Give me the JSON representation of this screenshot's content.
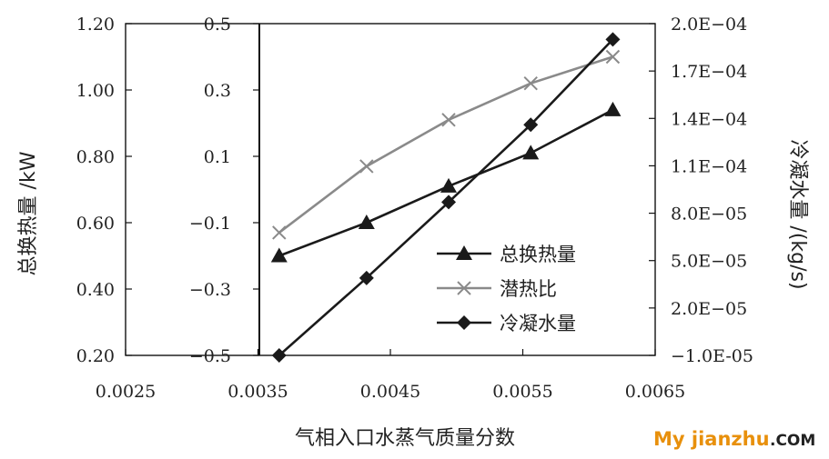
{
  "chart_data": {
    "type": "line",
    "title": "",
    "xlabel": "气相入口水蒸气质量分数",
    "ylabels": {
      "left_outer": "总换热量 /kW",
      "right": "冷凝水量 /(kg/s)"
    },
    "xlim": [
      0.0025,
      0.0065
    ],
    "x_ticks": [
      "0.0025",
      "0.0035",
      "0.0045",
      "0.0055",
      "0.0065"
    ],
    "y_axes": {
      "left_outer": {
        "range": [
          0.2,
          1.2
        ],
        "ticks": [
          "0.20",
          "0.40",
          "0.60",
          "0.80",
          "1.00",
          "1.20"
        ]
      },
      "left_inner": {
        "range": [
          -0.5,
          0.5
        ],
        "ticks": [
          "-0.5",
          "-0.3",
          "-0.1",
          "0.1",
          "0.3",
          "0.5"
        ]
      },
      "right": {
        "range": [
          -1e-05,
          0.0002
        ],
        "ticks": [
          "-1.0E-05",
          "2.0E-05",
          "5.0E-05",
          "8.0E-05",
          "1.1E-04",
          "1.4E-04",
          "1.7E-04",
          "2.0E-04"
        ]
      }
    },
    "grid": false,
    "legend_position": "lower-right",
    "series": [
      {
        "name": "总换热量",
        "axis": "left_outer",
        "marker": "triangle",
        "color": "#1a1a1a",
        "x": [
          0.00366,
          0.00432,
          0.00494,
          0.00556,
          0.00618
        ],
        "values": [
          0.5,
          0.6,
          0.71,
          0.81,
          0.94
        ]
      },
      {
        "name": "潜热比",
        "axis": "left_inner",
        "marker": "x",
        "color": "#8a8a8a",
        "x": [
          0.00366,
          0.00432,
          0.00494,
          0.00556,
          0.00618
        ],
        "values": [
          -0.13,
          0.07,
          0.21,
          0.32,
          0.4
        ]
      },
      {
        "name": "冷凝水量",
        "axis": "right",
        "marker": "diamond",
        "color": "#1a1a1a",
        "x": [
          0.00366,
          0.00432,
          0.00494,
          0.00556,
          0.00618
        ],
        "values": [
          -1e-05,
          3.9e-05,
          8.7e-05,
          0.000136,
          0.00019
        ]
      }
    ]
  },
  "watermark": {
    "part1": "My jianzhu",
    "part2": ".COM",
    "color1": "#e8900c",
    "color2": "#222222"
  }
}
